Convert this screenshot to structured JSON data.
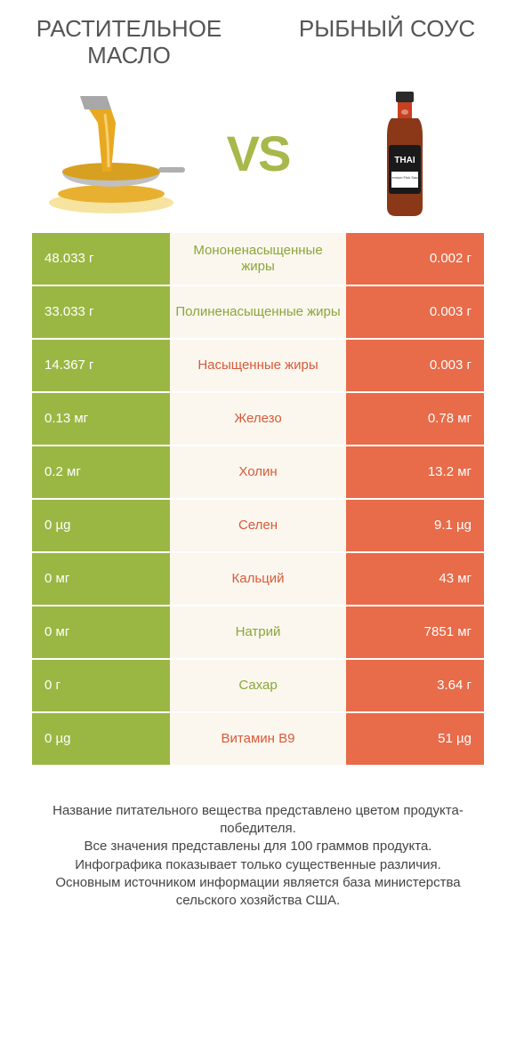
{
  "header": {
    "left_title": "РАСТИТЕЛЬНОЕ МАСЛО",
    "right_title": "РЫБНЫЙ СОУС",
    "vs": "VS"
  },
  "colors": {
    "green": "#9ab743",
    "orange": "#e86b4a",
    "mid_bg": "#fbf7ee",
    "mid_green": "#8aa63a",
    "mid_orange": "#d85a3a",
    "text_gray": "#555"
  },
  "rows": [
    {
      "left": "48.033 г",
      "mid": "Мононенасыщенные жиры",
      "right": "0.002 г",
      "winner": "left"
    },
    {
      "left": "33.033 г",
      "mid": "Полиненасыщенные жиры",
      "right": "0.003 г",
      "winner": "left"
    },
    {
      "left": "14.367 г",
      "mid": "Насыщенные жиры",
      "right": "0.003 г",
      "winner": "right"
    },
    {
      "left": "0.13 мг",
      "mid": "Железо",
      "right": "0.78 мг",
      "winner": "right"
    },
    {
      "left": "0.2 мг",
      "mid": "Холин",
      "right": "13.2 мг",
      "winner": "right"
    },
    {
      "left": "0 µg",
      "mid": "Селен",
      "right": "9.1 µg",
      "winner": "right"
    },
    {
      "left": "0 мг",
      "mid": "Кальций",
      "right": "43 мг",
      "winner": "right"
    },
    {
      "left": "0 мг",
      "mid": "Натрий",
      "right": "7851 мг",
      "winner": "left"
    },
    {
      "left": "0 г",
      "mid": "Сахар",
      "right": "3.64 г",
      "winner": "left"
    },
    {
      "left": "0 µg",
      "mid": "Витамин B9",
      "right": "51 µg",
      "winner": "right"
    }
  ],
  "footer": {
    "line1": "Название питательного вещества представлено цветом продукта-победителя.",
    "line2": "Все значения представлены для 100 граммов продукта.",
    "line3": "Инфографика показывает только существенные различия.",
    "line4": "Основным источником информации является база министерства сельского хозяйства США."
  }
}
